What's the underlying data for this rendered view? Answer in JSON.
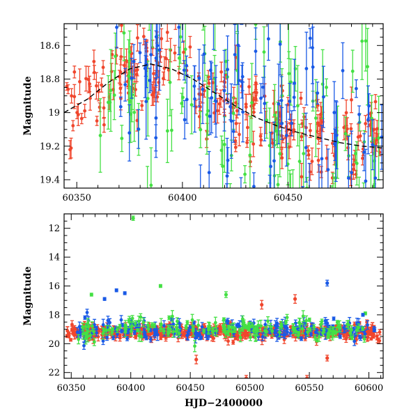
{
  "chart_data": [
    {
      "type": "scatter",
      "ylabel": "Magnitude",
      "xlim": [
        60344,
        60495
      ],
      "ylim": [
        19.45,
        18.47
      ],
      "y_inverted": true,
      "x_ticks": [
        60350,
        60400,
        60450
      ],
      "y_ticks": [
        18.6,
        18.8,
        19,
        19.2,
        19.4
      ],
      "x_tick_labels": [
        "60350",
        "60400",
        "60450"
      ],
      "y_tick_labels": [
        "18.6",
        "18.8",
        "19",
        "19.2",
        "19.4"
      ],
      "grid": false,
      "colors": {
        "red": "#f0462d",
        "green": "#44e044",
        "blue": "#1a5ae6",
        "fit": "#000000"
      },
      "model_curve": {
        "style": "dashed",
        "x": [
          60344,
          60355,
          60365,
          60375,
          60385,
          60395,
          60405,
          60415,
          60425,
          60435,
          60445,
          60455,
          60465,
          60475,
          60485,
          60495
        ],
        "y": [
          19.0,
          18.92,
          18.82,
          18.74,
          18.71,
          18.74,
          18.8,
          18.88,
          18.96,
          19.03,
          19.08,
          19.12,
          19.15,
          19.18,
          19.2,
          19.21
        ]
      },
      "series": [
        {
          "color": "red",
          "x_range": [
            60345,
            60495
          ],
          "y_mean_from_curve": true,
          "scatter": 0.12,
          "err": [
            0.02,
            0.08
          ],
          "count": 230
        },
        {
          "color": "green",
          "x_range": [
            60360,
            60495
          ],
          "y_mean_from_curve": true,
          "scatter": 0.3,
          "err": [
            0.05,
            0.25
          ],
          "count": 110
        },
        {
          "color": "blue",
          "x_range": [
            60365,
            60495
          ],
          "y_mean_from_curve": true,
          "scatter": 0.32,
          "err": [
            0.05,
            0.25
          ],
          "count": 110
        }
      ]
    },
    {
      "type": "scatter",
      "ylabel": "Magnitude",
      "xlabel": "HJD−2400000",
      "xlim": [
        60344,
        60612
      ],
      "ylim": [
        22.4,
        11.0
      ],
      "y_inverted": true,
      "x_ticks": [
        60350,
        60400,
        60450,
        60500,
        60550,
        60600
      ],
      "y_ticks": [
        12,
        14,
        16,
        18,
        20,
        22
      ],
      "x_tick_labels": [
        "60350",
        "60400",
        "60450",
        "60500",
        "60550",
        "60600"
      ],
      "y_tick_labels": [
        "12",
        "14",
        "16",
        "18",
        "20",
        "22"
      ],
      "grid": false,
      "series": [
        {
          "color": "red",
          "x_range": [
            60346,
            60610
          ],
          "y_mean": 19.2,
          "scatter": 0.25,
          "err": [
            0.05,
            0.3
          ],
          "count": 520
        },
        {
          "color": "blue",
          "x_range": [
            60355,
            60605
          ],
          "y_mean": 19.0,
          "scatter": 0.35,
          "err": [
            0.1,
            0.4
          ],
          "count": 200
        },
        {
          "color": "green",
          "x_range": [
            60355,
            60600
          ],
          "y_mean": 19.0,
          "scatter": 0.35,
          "err": [
            0.1,
            0.4
          ],
          "count": 160
        }
      ],
      "outliers": [
        {
          "color": "green",
          "x": 60402,
          "y": 11.3,
          "err": 0.15
        },
        {
          "color": "blue",
          "x": 60565,
          "y": 15.8,
          "err": 0.2
        },
        {
          "color": "blue",
          "x": 60388,
          "y": 16.3,
          "err": 0.1
        },
        {
          "color": "blue",
          "x": 60378,
          "y": 16.9,
          "err": 0.1
        },
        {
          "color": "green",
          "x": 60367,
          "y": 16.6,
          "err": 0.1
        },
        {
          "color": "green",
          "x": 60425,
          "y": 16.0,
          "err": 0.1
        },
        {
          "color": "blue",
          "x": 60395,
          "y": 16.5,
          "err": 0.1
        },
        {
          "color": "green",
          "x": 60480,
          "y": 16.6,
          "err": 0.2
        },
        {
          "color": "red",
          "x": 60538,
          "y": 16.9,
          "err": 0.3
        },
        {
          "color": "red",
          "x": 60510,
          "y": 17.3,
          "err": 0.3
        },
        {
          "color": "red",
          "x": 60497,
          "y": 22.4,
          "err": 0.2
        },
        {
          "color": "red",
          "x": 60548,
          "y": 22.4,
          "err": 0.2
        },
        {
          "color": "red",
          "x": 60455,
          "y": 21.1,
          "err": 0.3
        },
        {
          "color": "red",
          "x": 60565,
          "y": 21.0,
          "err": 0.2
        },
        {
          "color": "green",
          "x": 60597,
          "y": 17.9,
          "err": 0.1
        },
        {
          "color": "blue",
          "x": 60595,
          "y": 18.0,
          "err": 0.1
        }
      ]
    }
  ]
}
